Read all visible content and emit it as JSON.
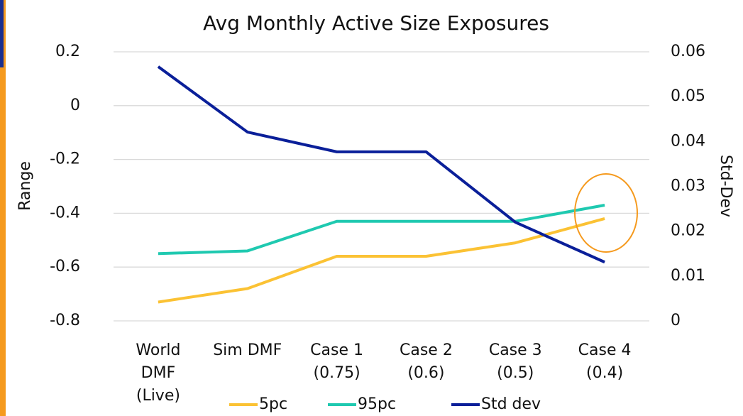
{
  "chart_data": {
    "type": "line",
    "title": "Avg Monthly Active Size Exposures",
    "ylabel": "Range",
    "y2label": "Std-Dev",
    "categories": [
      "World\nDMF\n(Live)",
      "Sim DMF",
      "Case 1\n(0.75)",
      "Case 2\n(0.6)",
      "Case 3\n(0.5)",
      "Case 4\n(0.4)"
    ],
    "series": [
      {
        "name": "5pc",
        "color": "#fbc234",
        "values": [
          -0.73,
          -0.68,
          -0.56,
          -0.56,
          -0.51,
          -0.42
        ]
      },
      {
        "name": "95pc",
        "color": "#1fc9b0",
        "values": [
          -0.55,
          -0.54,
          -0.43,
          -0.43,
          -0.43,
          -0.37
        ]
      },
      {
        "name": "Std dev",
        "color": "#0a1f99",
        "axis": "y2",
        "values": [
          0.0567,
          0.0421,
          0.0377,
          0.0377,
          0.022,
          0.0131
        ]
      }
    ],
    "ylim": [
      -0.8,
      0.2
    ],
    "yticks": [
      -0.8,
      -0.6,
      -0.4,
      -0.2,
      0,
      0.2
    ],
    "y2lim": [
      0,
      0.06
    ],
    "y2ticks": [
      0,
      0.01,
      0.02,
      0.03,
      0.04,
      0.05,
      0.06
    ],
    "grid": true,
    "legend": "bottom"
  }
}
